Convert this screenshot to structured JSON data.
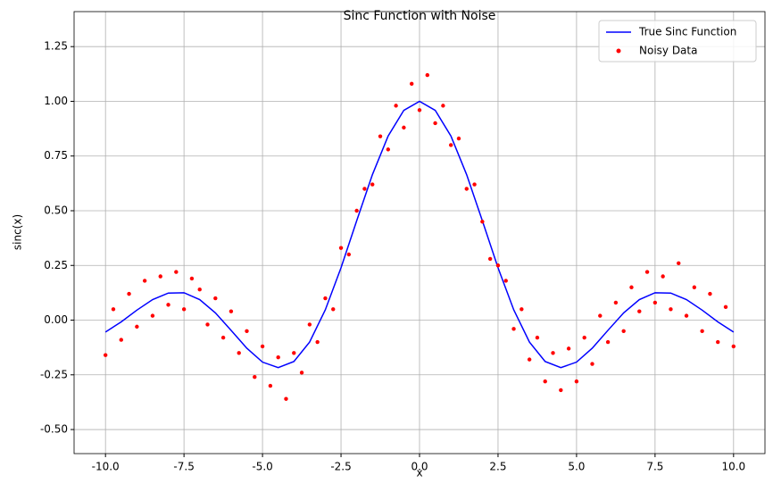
{
  "chart_data": {
    "type": "line",
    "title": "Sinc Function with Noise",
    "x_label": "x",
    "y_label": "sinc(x)",
    "xlim": [
      -11,
      11
    ],
    "ylim": [
      -0.61,
      1.41
    ],
    "xticks": [
      {
        "value": -10,
        "label": "-10.0"
      },
      {
        "value": -7.5,
        "label": "-7.5"
      },
      {
        "value": -5,
        "label": "-5.0"
      },
      {
        "value": -2.5,
        "label": "-2.5"
      },
      {
        "value": 0,
        "label": "0.0"
      },
      {
        "value": 2.5,
        "label": "2.5"
      },
      {
        "value": 5,
        "label": "5.0"
      },
      {
        "value": 7.5,
        "label": "7.5"
      },
      {
        "value": 10,
        "label": "10.0"
      }
    ],
    "yticks": [
      {
        "value": -0.5,
        "label": "-0.50"
      },
      {
        "value": -0.25,
        "label": "-0.25"
      },
      {
        "value": 0,
        "label": "0.00"
      },
      {
        "value": 0.25,
        "label": "0.25"
      },
      {
        "value": 0.5,
        "label": "0.50"
      },
      {
        "value": 0.75,
        "label": "0.75"
      },
      {
        "value": 1,
        "label": "1.00"
      },
      {
        "value": 1.25,
        "label": "1.25"
      }
    ],
    "grid": true,
    "legend": "upper right",
    "series": [
      {
        "name": "True Sinc Function",
        "type": "line",
        "color": "#0000ff",
        "x": [
          -10,
          -9.5,
          -9,
          -8.5,
          -8,
          -7.5,
          -7,
          -6.5,
          -6,
          -5.5,
          -5,
          -4.5,
          -4,
          -3.5,
          -3,
          -2.5,
          -2,
          -1.5,
          -1,
          -0.5,
          0,
          0.5,
          1,
          1.5,
          2,
          2.5,
          3,
          3.5,
          4,
          4.5,
          5,
          5.5,
          6,
          6.5,
          7,
          7.5,
          8,
          8.5,
          9,
          9.5,
          10
        ],
        "values": [
          -0.0544,
          -0.0079,
          0.0458,
          0.0939,
          0.1237,
          0.1251,
          0.0939,
          0.0331,
          -0.0466,
          -0.1283,
          -0.1918,
          -0.2172,
          -0.1892,
          -0.1002,
          0.047,
          0.2394,
          0.4546,
          0.665,
          0.8415,
          0.9589,
          1,
          0.9589,
          0.8415,
          0.665,
          0.4546,
          0.2394,
          0.047,
          -0.1002,
          -0.1892,
          -0.2172,
          -0.1918,
          -0.1283,
          -0.0466,
          0.0331,
          0.0939,
          0.1251,
          0.1237,
          0.0939,
          0.0458,
          -0.0079,
          -0.0544
        ]
      },
      {
        "name": "Noisy Data",
        "type": "scatter",
        "color": "#ff0000",
        "x": [
          -10,
          -9.75,
          -9.5,
          -9.25,
          -9,
          -8.75,
          -8.5,
          -8.25,
          -8,
          -7.75,
          -7.5,
          -7.25,
          -7,
          -6.75,
          -6.5,
          -6.25,
          -6,
          -5.75,
          -5.5,
          -5.25,
          -5,
          -4.75,
          -4.5,
          -4.25,
          -4,
          -3.75,
          -3.5,
          -3.25,
          -3,
          -2.75,
          -2.5,
          -2.25,
          -2,
          -1.75,
          -1.5,
          -1.25,
          -1,
          -0.75,
          -0.5,
          -0.25,
          0,
          0.25,
          0.5,
          0.75,
          1,
          1.25,
          1.5,
          1.75,
          2,
          2.25,
          2.5,
          2.75,
          3,
          3.25,
          3.5,
          3.75,
          4,
          4.25,
          4.5,
          4.75,
          5,
          5.25,
          5.5,
          5.75,
          6,
          6.25,
          6.5,
          6.75,
          7,
          7.25,
          7.5,
          7.75,
          8,
          8.25,
          8.5,
          8.75,
          9,
          9.25,
          9.5,
          9.75,
          10
        ],
        "values": [
          -0.16,
          0.05,
          -0.09,
          0.12,
          -0.03,
          0.18,
          0.02,
          0.2,
          0.07,
          0.22,
          0.05,
          0.19,
          0.14,
          -0.02,
          0.1,
          -0.08,
          0.04,
          -0.15,
          -0.05,
          -0.26,
          -0.12,
          -0.3,
          -0.17,
          -0.36,
          -0.15,
          -0.24,
          -0.02,
          -0.1,
          0.1,
          0.05,
          0.33,
          0.3,
          0.5,
          0.6,
          0.62,
          0.84,
          0.78,
          0.98,
          0.88,
          1.08,
          0.96,
          1.12,
          0.9,
          0.98,
          0.8,
          0.83,
          0.6,
          0.62,
          0.45,
          0.28,
          0.25,
          0.18,
          -0.04,
          0.05,
          -0.18,
          -0.08,
          -0.28,
          -0.15,
          -0.32,
          -0.13,
          -0.28,
          -0.08,
          -0.2,
          0.02,
          -0.1,
          0.08,
          -0.05,
          0.15,
          0.04,
          0.22,
          0.08,
          0.2,
          0.05,
          0.26,
          0.02,
          0.15,
          -0.05,
          0.12,
          -0.1,
          0.06,
          -0.12
        ]
      }
    ]
  }
}
